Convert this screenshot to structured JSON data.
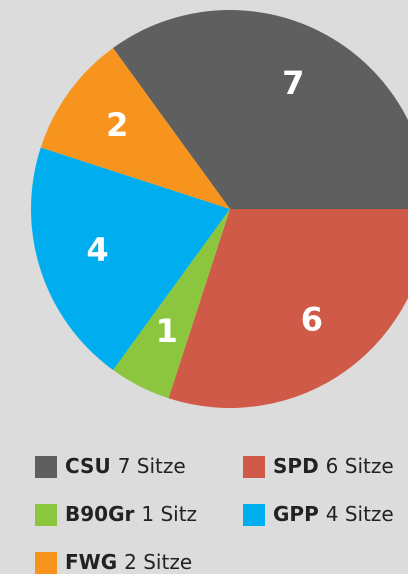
{
  "chart_data": {
    "type": "pie",
    "categories": [
      "CSU",
      "SPD",
      "B90Gr",
      "GPP",
      "FWG"
    ],
    "values": [
      7,
      6,
      1,
      4,
      2
    ],
    "value_labels": [
      "7 Sitze",
      "6 Sitze",
      "1 Sitz",
      "4 Sitze",
      "2 Sitze"
    ],
    "colors": [
      "#5f5f5f",
      "#cf5a48",
      "#8cc63f",
      "#00aeef",
      "#f7941d"
    ]
  }
}
